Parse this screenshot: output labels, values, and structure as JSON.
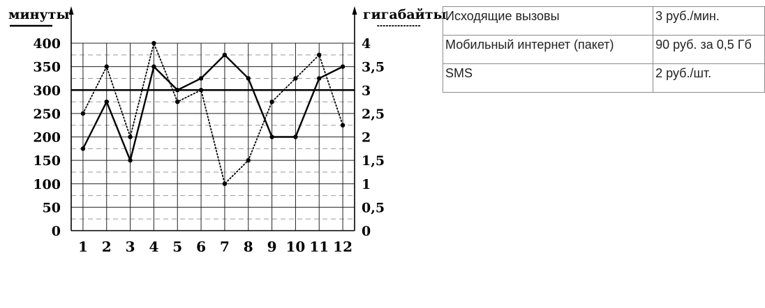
{
  "chart_data": {
    "type": "line",
    "categories": [
      "1",
      "2",
      "3",
      "4",
      "5",
      "6",
      "7",
      "8",
      "9",
      "10",
      "11",
      "12"
    ],
    "left_axis_label": "минуты",
    "right_axis_label": "гигабайты",
    "left_ylim": [
      0,
      400
    ],
    "right_ylim": [
      0,
      4
    ],
    "left_ticks": [
      "0",
      "50",
      "100",
      "150",
      "200",
      "250",
      "300",
      "350",
      "400"
    ],
    "right_ticks": [
      "0",
      "0,5",
      "1",
      "1,5",
      "2",
      "2,5",
      "3",
      "3,5",
      "4"
    ],
    "reference_line": 300,
    "grid": true,
    "series": [
      {
        "axis": "left",
        "style": "solid",
        "values": [
          175,
          275,
          150,
          350,
          300,
          325,
          375,
          325,
          200,
          200,
          325,
          350
        ]
      },
      {
        "axis": "right",
        "style": "dotted",
        "values": [
          2.5,
          3.5,
          2.0,
          4.0,
          2.75,
          3.0,
          1.0,
          1.5,
          2.75,
          3.25,
          3.75,
          2.25
        ]
      }
    ]
  },
  "tariffs": {
    "rows": [
      {
        "service": "Исходящие вызовы",
        "price": "3 руб./мин."
      },
      {
        "service": "Мобильный интернет (пакет)",
        "price": "90 руб. за 0,5 Гб"
      },
      {
        "service": "SMS",
        "price": "2 руб./шт."
      }
    ]
  }
}
